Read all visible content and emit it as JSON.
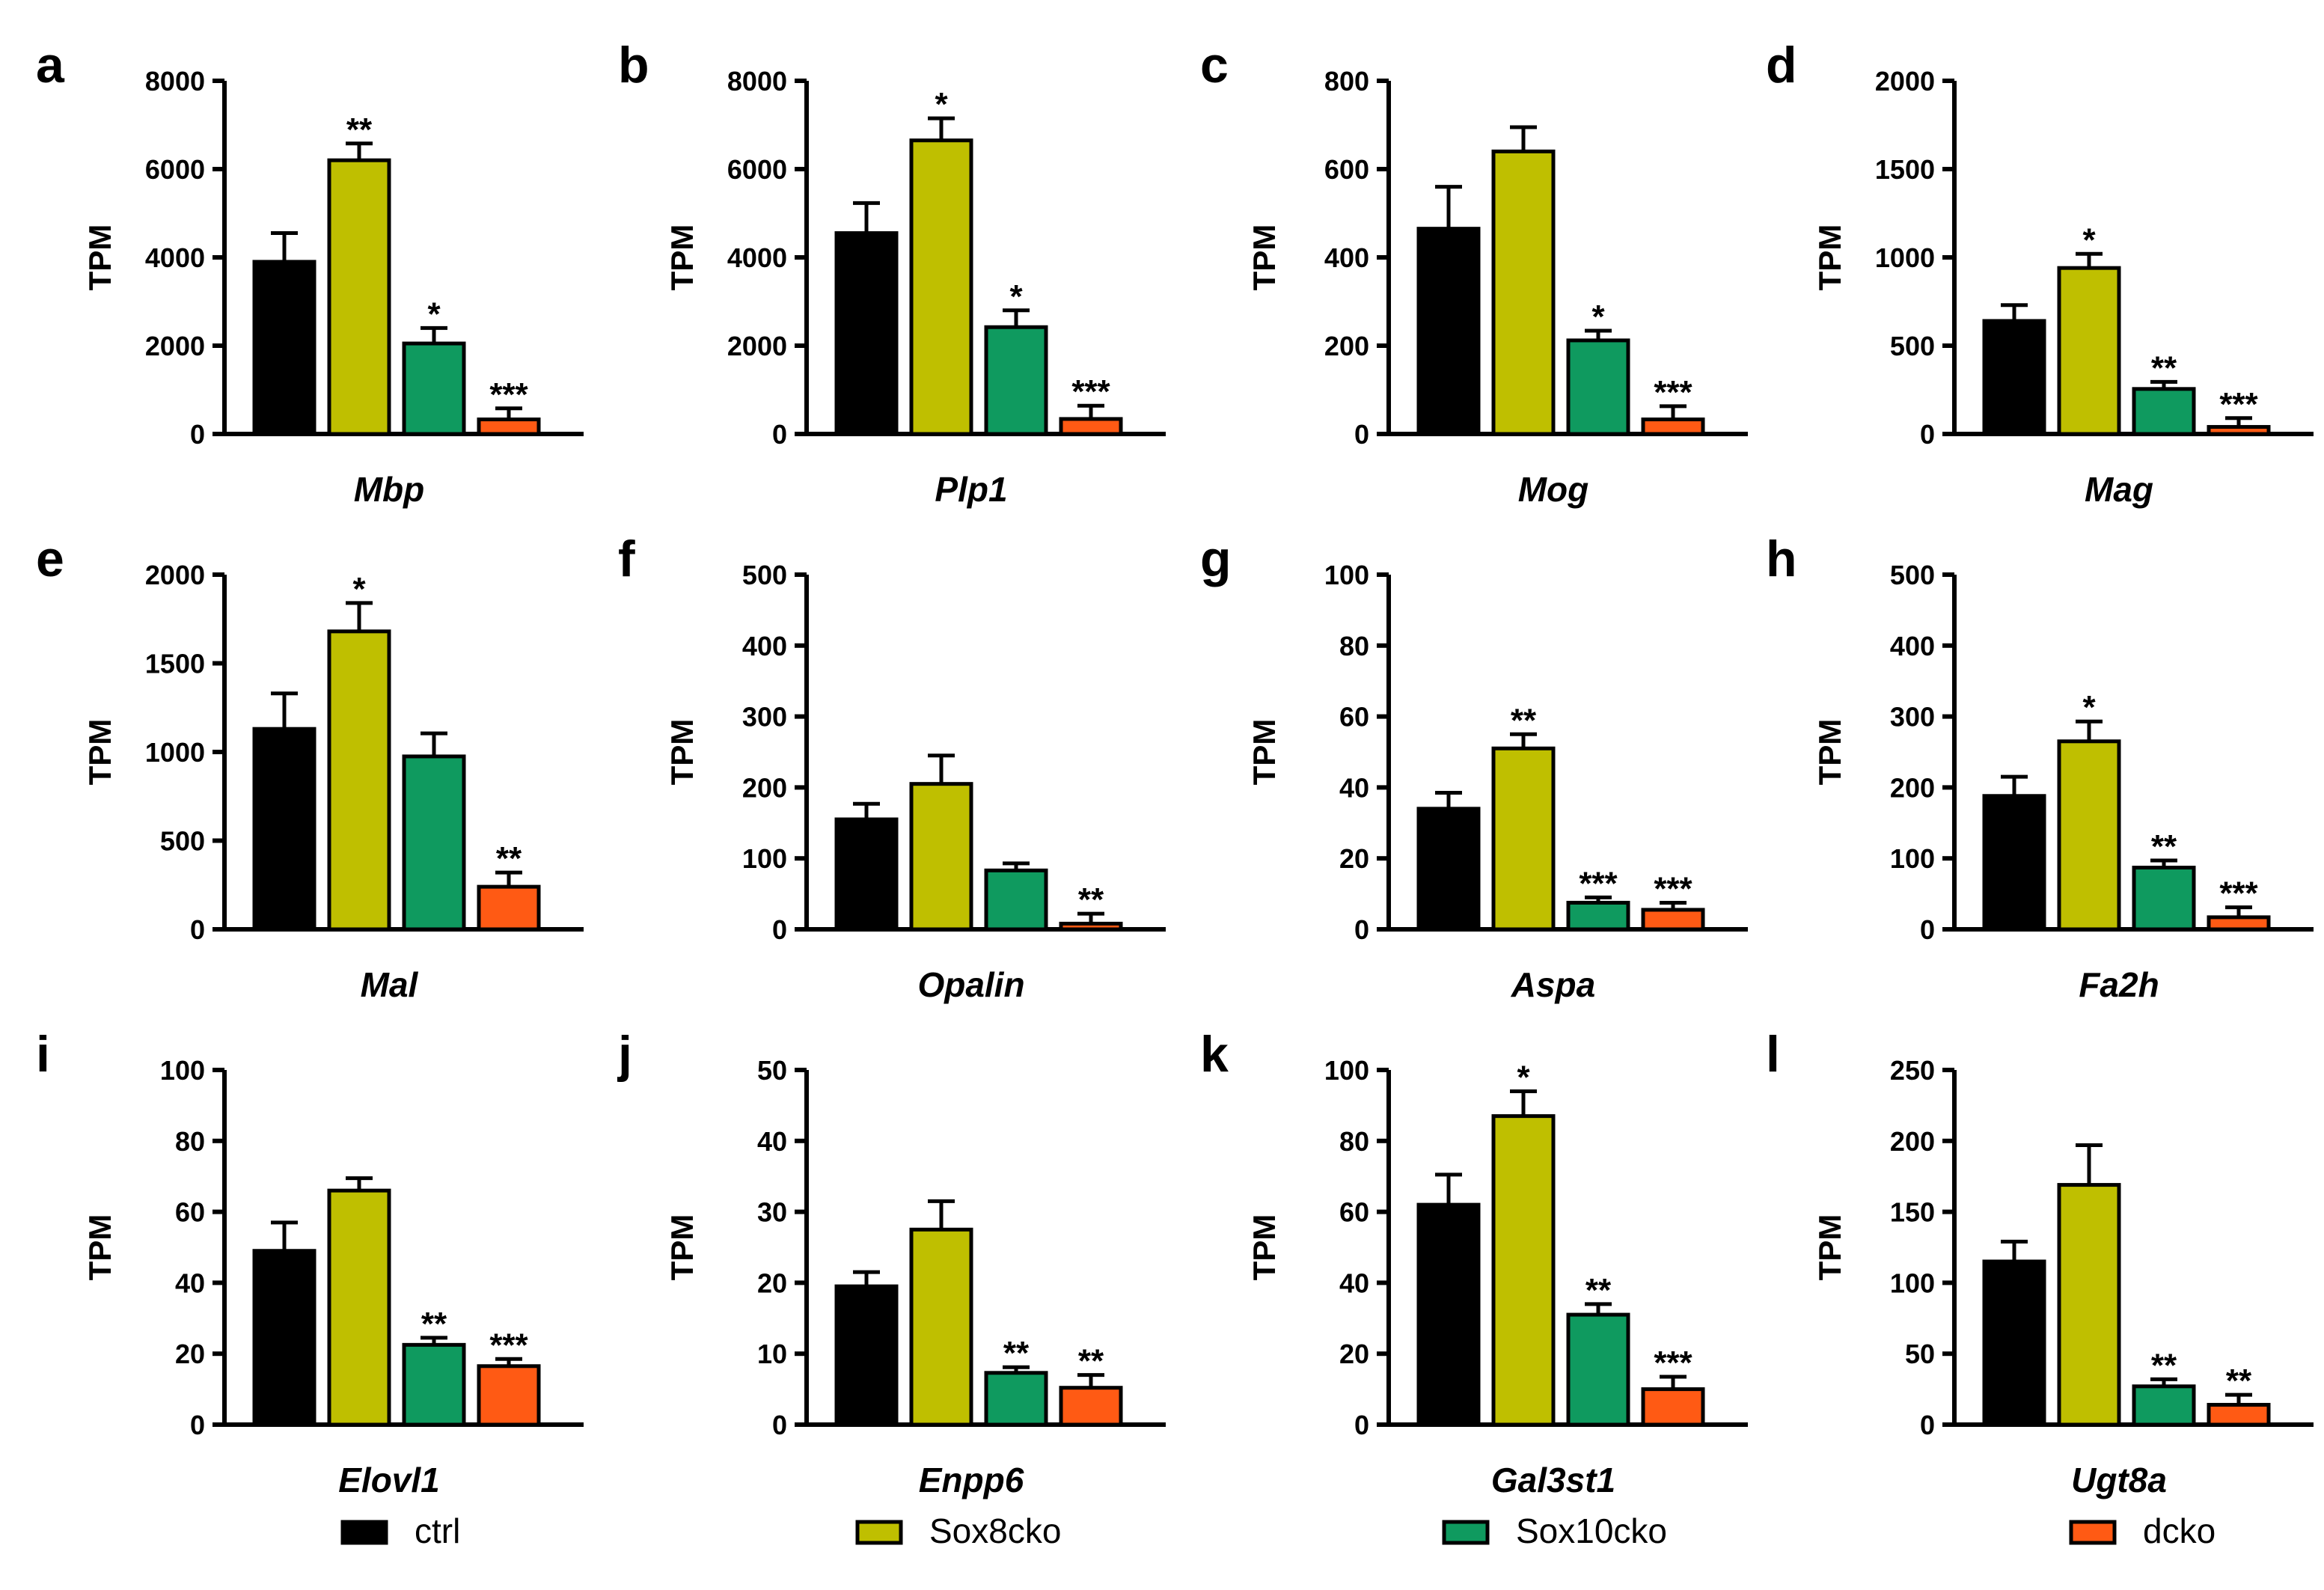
{
  "chart_data": [
    {
      "panel": "a",
      "type": "bar",
      "title": "Mbp",
      "ylabel": "TPM",
      "ylim": [
        0,
        8000
      ],
      "yticks": [
        "0",
        "2000",
        "4000",
        "6000",
        "8000"
      ],
      "values": [
        3900,
        6200,
        2050,
        330
      ],
      "errors": [
        650,
        380,
        350,
        250
      ],
      "annotations": [
        "",
        "**",
        "*",
        "***"
      ]
    },
    {
      "panel": "b",
      "type": "bar",
      "title": "Plp1",
      "ylabel": "TPM",
      "ylim": [
        0,
        8000
      ],
      "yticks": [
        "0",
        "2000",
        "4000",
        "6000",
        "8000"
      ],
      "values": [
        4550,
        6650,
        2420,
        340
      ],
      "errors": [
        680,
        500,
        380,
        300
      ],
      "annotations": [
        "",
        "*",
        "*",
        "***"
      ]
    },
    {
      "panel": "c",
      "type": "bar",
      "title": "Mog",
      "ylabel": "TPM",
      "ylim": [
        0,
        800
      ],
      "yticks": [
        "0",
        "200",
        "400",
        "600",
        "800"
      ],
      "values": [
        465,
        640,
        212,
        33
      ],
      "errors": [
        95,
        55,
        22,
        30
      ],
      "annotations": [
        "",
        "",
        "*",
        "***"
      ]
    },
    {
      "panel": "d",
      "type": "bar",
      "title": "Mag",
      "ylabel": "TPM",
      "ylim": [
        0,
        2000
      ],
      "yticks": [
        "0",
        "500",
        "1000",
        "1500",
        "2000"
      ],
      "values": [
        640,
        940,
        255,
        40
      ],
      "errors": [
        90,
        80,
        40,
        50
      ],
      "annotations": [
        "",
        "*",
        "**",
        "***"
      ]
    },
    {
      "panel": "e",
      "type": "bar",
      "title": "Mal",
      "ylabel": "TPM",
      "ylim": [
        0,
        2000
      ],
      "yticks": [
        "0",
        "500",
        "1000",
        "1500",
        "2000"
      ],
      "values": [
        1130,
        1680,
        975,
        240
      ],
      "errors": [
        200,
        160,
        130,
        80
      ],
      "annotations": [
        "",
        "*",
        "",
        "**"
      ]
    },
    {
      "panel": "f",
      "type": "bar",
      "title": "Opalin",
      "ylabel": "TPM",
      "ylim": [
        0,
        500
      ],
      "yticks": [
        "0",
        "100",
        "200",
        "300",
        "400",
        "500"
      ],
      "values": [
        155,
        205,
        83,
        8
      ],
      "errors": [
        22,
        40,
        10,
        14
      ],
      "annotations": [
        "",
        "",
        "",
        "**"
      ]
    },
    {
      "panel": "g",
      "type": "bar",
      "title": "Aspa",
      "ylabel": "TPM",
      "ylim": [
        0,
        100
      ],
      "yticks": [
        "0",
        "20",
        "40",
        "60",
        "80",
        "100"
      ],
      "values": [
        34,
        51,
        7.5,
        5.5
      ],
      "errors": [
        4.5,
        4,
        1.5,
        2
      ],
      "annotations": [
        "",
        "**",
        "***",
        "***"
      ]
    },
    {
      "panel": "h",
      "type": "bar",
      "title": "Fa2h",
      "ylabel": "TPM",
      "ylim": [
        0,
        500
      ],
      "yticks": [
        "0",
        "100",
        "200",
        "300",
        "400",
        "500"
      ],
      "values": [
        188,
        265,
        87,
        17
      ],
      "errors": [
        27,
        28,
        10,
        14
      ],
      "annotations": [
        "",
        "*",
        "**",
        "***"
      ]
    },
    {
      "panel": "i",
      "type": "bar",
      "title": "Elovl1",
      "ylabel": "TPM",
      "ylim": [
        0,
        100
      ],
      "yticks": [
        "0",
        "20",
        "40",
        "60",
        "80",
        "100"
      ],
      "values": [
        49,
        66,
        22.5,
        16.5
      ],
      "errors": [
        8,
        3.5,
        2,
        2
      ],
      "annotations": [
        "",
        "",
        "**",
        "***"
      ]
    },
    {
      "panel": "j",
      "type": "bar",
      "title": "Enpp6",
      "ylabel": "TPM",
      "ylim": [
        0,
        50
      ],
      "yticks": [
        "0",
        "10",
        "20",
        "30",
        "40",
        "50"
      ],
      "values": [
        19.5,
        27.5,
        7.3,
        5.2
      ],
      "errors": [
        2,
        4,
        0.8,
        1.8
      ],
      "annotations": [
        "",
        "",
        "**",
        "**"
      ]
    },
    {
      "panel": "k",
      "type": "bar",
      "title": "Gal3st1",
      "ylabel": "TPM",
      "ylim": [
        0,
        100
      ],
      "yticks": [
        "0",
        "20",
        "40",
        "60",
        "80",
        "100"
      ],
      "values": [
        62,
        87,
        31,
        10
      ],
      "errors": [
        8.5,
        7,
        3,
        3.5
      ],
      "annotations": [
        "",
        "*",
        "**",
        "***"
      ]
    },
    {
      "panel": "l",
      "type": "bar",
      "title": "Ugt8a",
      "ylabel": "TPM",
      "ylim": [
        0,
        250
      ],
      "yticks": [
        "0",
        "50",
        "100",
        "150",
        "200",
        "250"
      ],
      "values": [
        115,
        169,
        27,
        14
      ],
      "errors": [
        14,
        28,
        5,
        7
      ],
      "annotations": [
        "",
        "",
        "**",
        "**"
      ]
    }
  ],
  "legend": [
    {
      "label": "ctrl",
      "color": "#000000"
    },
    {
      "label": "Sox8cko",
      "color": "#bfbf00"
    },
    {
      "label": "Sox10cko",
      "color": "#0f9a5f"
    },
    {
      "label": "dcko",
      "color": "#ff5a14"
    }
  ]
}
